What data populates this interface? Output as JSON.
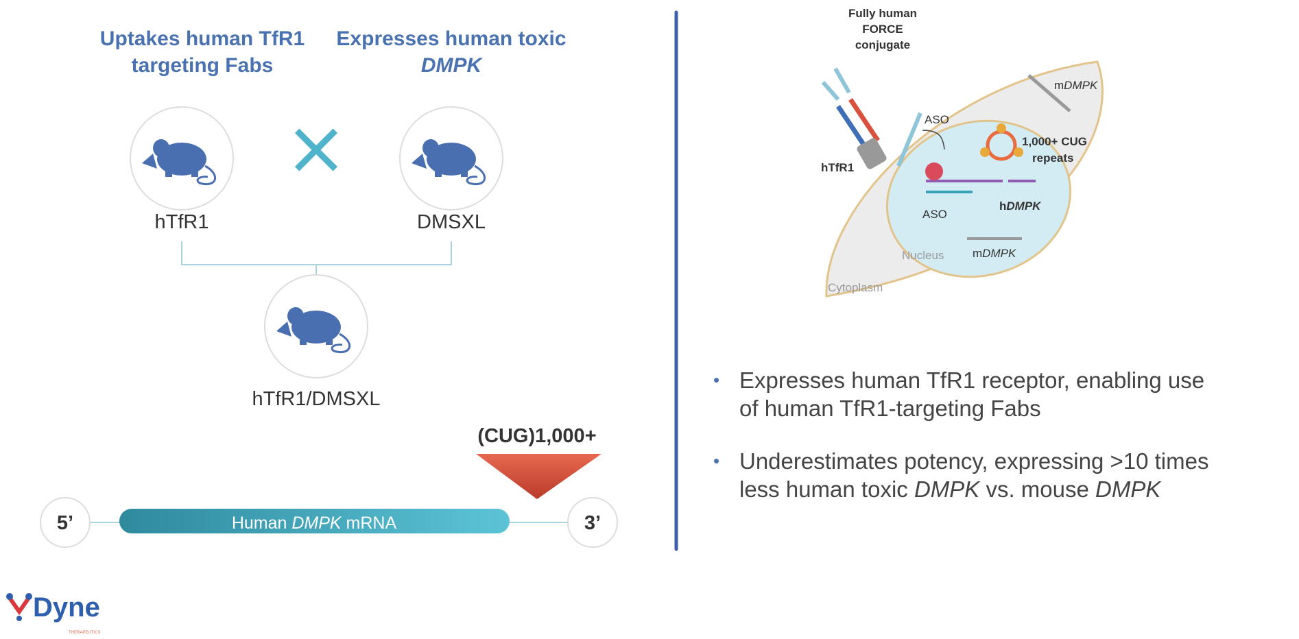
{
  "left": {
    "title_left": [
      "Uptakes human TfR1",
      "targeting Fabs"
    ],
    "title_right_line1": "Expresses human toxic",
    "title_right_line2": "DMPK",
    "parent1_label": "hTfR1",
    "parent2_label": "DMSXL",
    "cross_symbol": "×",
    "offspring_label": "hTfR1/DMSXL",
    "repeat_label": "(CUG)1,000+",
    "mrna": {
      "five_prime": "5’",
      "three_prime": "3’",
      "prefix": "Human ",
      "gene": "DMPK",
      "suffix": " mRNA"
    }
  },
  "right": {
    "diagram": {
      "conjugate_label": [
        "Fully human",
        "FORCE",
        "conjugate"
      ],
      "receptor_label": "hTfR1",
      "aso_top": "ASO",
      "aso_bottom": "ASO",
      "repeats_label": [
        "1,000+ CUG",
        "repeats"
      ],
      "hdmpk": {
        "prefix": "h",
        "gene": "DMPK"
      },
      "mdmpk_cyto": {
        "prefix": "m",
        "gene": "DMPK"
      },
      "mdmpk_nuc": {
        "prefix": "m",
        "gene": "DMPK"
      },
      "nucleus_label": "Nucleus",
      "cytoplasm_label": "Cytoplasm"
    },
    "bullets": [
      {
        "line1": "Expresses human TfR1 receptor, enabling use",
        "line2": "of human TfR1-targeting Fabs"
      },
      {
        "line1": "Underestimates potency, expressing >10 times",
        "line2_a": "less human toxic ",
        "line2_b": "DMPK",
        "line2_c": " vs. mouse ",
        "line2_d": "DMPK"
      }
    ],
    "bullet_char": "•"
  },
  "logo": {
    "text": "Dyne",
    "subtext": "THERAPEUTICS"
  },
  "colors": {
    "title_blue": "#4a72b0",
    "mouse": "#4a6fb0",
    "cross": "#4fb3cc",
    "divider": "#3f5fa8",
    "mrna_bar": "#3aa2bb",
    "triangle": "#d9503c"
  }
}
